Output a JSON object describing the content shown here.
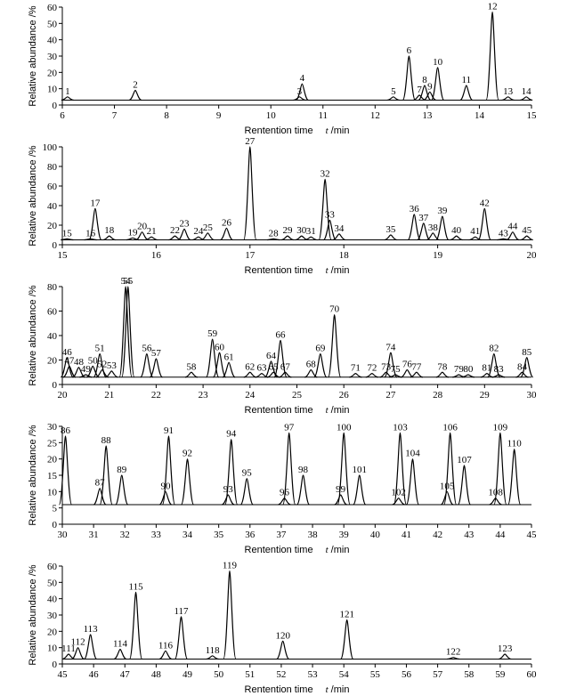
{
  "chart_data": [
    {
      "type": "chromatogram",
      "ylabel": "Relative abundance /%",
      "xlabel": "Rentention time",
      "xvar": "t",
      "xunit": "/min",
      "xlim": [
        6,
        15
      ],
      "xticks": [
        6,
        7,
        8,
        9,
        10,
        11,
        12,
        13,
        14,
        15
      ],
      "ylim": [
        0,
        60
      ],
      "yticks": [
        0,
        10,
        20,
        30,
        40,
        50,
        60
      ],
      "baseline": 3,
      "color": "#000000",
      "peaks": {
        "labels": [
          "1",
          "2",
          "3",
          "4",
          "5",
          "6",
          "7",
          "8",
          "9",
          "10",
          "11",
          "12",
          "13",
          "14"
        ],
        "x": [
          6.1,
          7.4,
          10.55,
          10.6,
          12.35,
          12.65,
          12.85,
          12.95,
          13.05,
          13.2,
          13.75,
          14.25,
          14.55,
          14.9
        ],
        "values": [
          5,
          9,
          5,
          13,
          5,
          30,
          6,
          12,
          8,
          23,
          12,
          57,
          5,
          5
        ]
      }
    },
    {
      "type": "chromatogram",
      "ylabel": "Relative abundance /%",
      "xlabel": "Rentention time",
      "xvar": "t",
      "xunit": "/min",
      "xlim": [
        15,
        20
      ],
      "xticks": [
        15,
        16,
        17,
        18,
        19,
        20
      ],
      "ylim": [
        0,
        100
      ],
      "yticks": [
        0,
        20,
        40,
        60,
        80,
        100
      ],
      "baseline": 5,
      "color": "#000000",
      "peaks": {
        "labels": [
          "15",
          "16",
          "17",
          "18",
          "19",
          "20",
          "21",
          "22",
          "23",
          "24",
          "25",
          "26",
          "27",
          "28",
          "29",
          "30",
          "31",
          "32",
          "33",
          "34",
          "35",
          "36",
          "37",
          "38",
          "39",
          "40",
          "41",
          "42",
          "43",
          "44",
          "45"
        ],
        "x": [
          15.05,
          15.3,
          15.35,
          15.5,
          15.75,
          15.85,
          15.95,
          16.2,
          16.3,
          16.45,
          16.55,
          16.75,
          17.0,
          17.25,
          17.4,
          17.55,
          17.65,
          17.8,
          17.85,
          17.95,
          18.5,
          18.75,
          18.85,
          18.95,
          19.05,
          19.2,
          19.4,
          19.5,
          19.7,
          19.8,
          19.95
        ],
        "values": [
          6,
          6,
          37,
          9,
          7,
          13,
          8,
          9,
          16,
          8,
          12,
          17,
          100,
          6,
          9,
          9,
          8,
          67,
          25,
          11,
          10,
          31,
          22,
          12,
          29,
          9,
          8,
          37,
          6,
          13,
          9
        ]
      }
    },
    {
      "type": "chromatogram",
      "ylabel": "Relative abundance /%",
      "xlabel": "Rentention time",
      "xvar": "t",
      "xunit": "/min",
      "xlim": [
        20,
        30
      ],
      "xticks": [
        20,
        21,
        22,
        23,
        24,
        25,
        26,
        27,
        28,
        29,
        30
      ],
      "ylim": [
        0,
        80
      ],
      "yticks": [
        0,
        20,
        40,
        60,
        80
      ],
      "baseline": 6,
      "color": "#000000",
      "peaks": {
        "labels": [
          "46",
          "47",
          "48",
          "49",
          "50",
          "51",
          "52",
          "53",
          "54",
          "55",
          "56",
          "57",
          "58",
          "59",
          "60",
          "61",
          "62",
          "63",
          "64",
          "65",
          "66",
          "67",
          "68",
          "69",
          "70",
          "71",
          "72",
          "73",
          "74",
          "75",
          "76",
          "77",
          "78",
          "79",
          "80",
          "81",
          "82",
          "83",
          "84",
          "85"
        ],
        "x": [
          20.1,
          20.15,
          20.35,
          20.5,
          20.65,
          20.8,
          20.85,
          21.05,
          21.35,
          21.4,
          21.8,
          22.0,
          22.75,
          23.2,
          23.35,
          23.55,
          24.0,
          24.25,
          24.45,
          24.5,
          24.65,
          24.75,
          25.3,
          25.5,
          25.8,
          26.25,
          26.6,
          26.9,
          27.0,
          27.1,
          27.35,
          27.55,
          28.1,
          28.45,
          28.65,
          29.05,
          29.2,
          29.3,
          29.8,
          29.9
        ],
        "values": [
          22,
          15,
          14,
          8,
          15,
          25,
          12,
          11,
          80,
          80,
          25,
          21,
          10,
          37,
          26,
          18,
          10,
          9,
          19,
          10,
          36,
          10,
          12,
          25,
          57,
          9,
          9,
          10,
          26,
          8,
          12,
          10,
          10,
          8,
          8,
          9,
          25,
          8,
          10,
          22
        ]
      }
    },
    {
      "type": "chromatogram",
      "ylabel": "Relative abundance /%",
      "xlabel": "Rentention time",
      "xvar": "t",
      "xunit": "/min",
      "xlim": [
        30,
        45
      ],
      "xticks": [
        30,
        31,
        32,
        33,
        34,
        35,
        36,
        37,
        38,
        39,
        40,
        41,
        42,
        43,
        44,
        45
      ],
      "ylim": [
        0,
        30
      ],
      "yticks": [
        0,
        5,
        10,
        15,
        20,
        25,
        30
      ],
      "baseline": 6,
      "color": "#000000",
      "peaks": {
        "labels": [
          "86",
          "87",
          "88",
          "89",
          "90",
          "91",
          "92",
          "93",
          "94",
          "95",
          "96",
          "97",
          "98",
          "99",
          "100",
          "101",
          "102",
          "103",
          "104",
          "105",
          "106",
          "107",
          "108",
          "109",
          "110"
        ],
        "x": [
          30.1,
          31.2,
          31.4,
          31.9,
          33.3,
          33.4,
          34.0,
          35.3,
          35.4,
          35.9,
          37.1,
          37.25,
          37.7,
          38.9,
          39.0,
          39.5,
          40.75,
          40.8,
          41.2,
          42.3,
          42.4,
          42.85,
          43.85,
          44.0,
          44.45
        ],
        "values": [
          27,
          11,
          24,
          15,
          10,
          27,
          20,
          9,
          26,
          14,
          8,
          28,
          15,
          9,
          28,
          15,
          8,
          28,
          20,
          10,
          28,
          18,
          8,
          28,
          23
        ]
      }
    },
    {
      "type": "chromatogram",
      "ylabel": "Relative abundance /%",
      "xlabel": "Rentention time",
      "xvar": "t",
      "xunit": "/min",
      "xlim": [
        45,
        60
      ],
      "xticks": [
        45,
        46,
        47,
        48,
        49,
        50,
        51,
        52,
        53,
        54,
        55,
        56,
        57,
        58,
        59,
        60
      ],
      "ylim": [
        0,
        60
      ],
      "yticks": [
        0,
        10,
        20,
        30,
        40,
        50,
        60
      ],
      "baseline": 3,
      "color": "#000000",
      "peaks": {
        "labels": [
          "111",
          "112",
          "113",
          "114",
          "115",
          "116",
          "117",
          "118",
          "119",
          "120",
          "121",
          "122",
          "123"
        ],
        "x": [
          45.2,
          45.5,
          45.9,
          46.85,
          47.35,
          48.3,
          48.8,
          49.8,
          50.35,
          52.05,
          54.1,
          57.5,
          59.15
        ],
        "values": [
          6,
          10,
          18,
          9,
          44,
          8,
          29,
          5,
          57,
          14,
          27,
          4,
          6
        ]
      }
    }
  ]
}
